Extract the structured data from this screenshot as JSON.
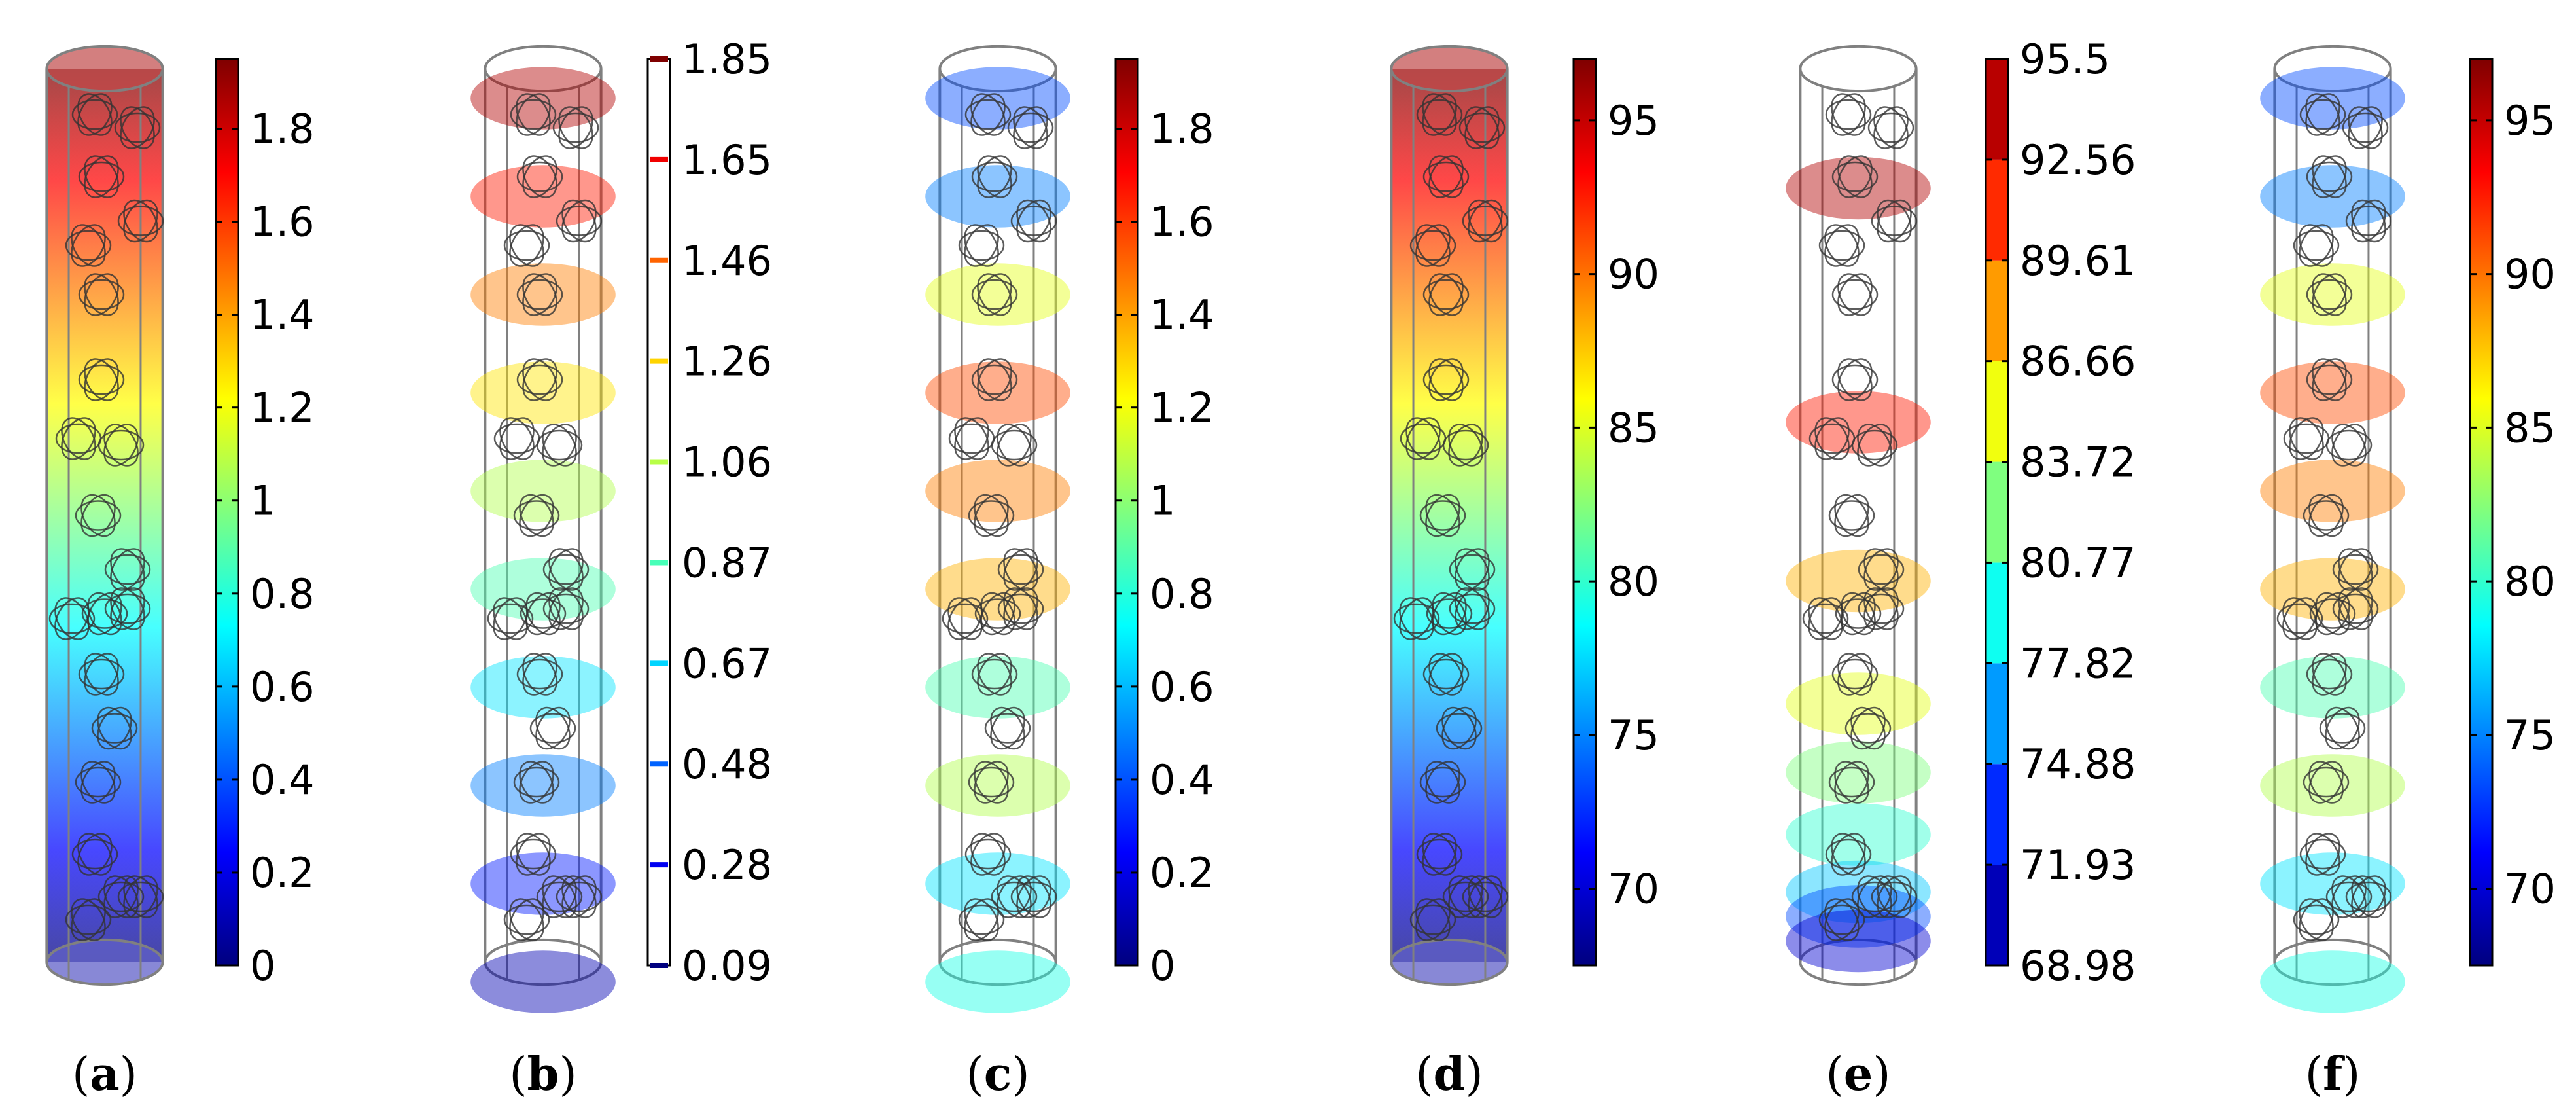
{
  "figure": {
    "panels": [
      {
        "id": "a",
        "label": "(a)",
        "letter": "a",
        "kind": "volume-gradient",
        "colorbar": {
          "kind": "continuous",
          "ticks": [
            "0",
            "0.2",
            "0.4",
            "0.6",
            "0.8",
            "1",
            "1.2",
            "1.4",
            "1.6",
            "1.8"
          ],
          "min": 0,
          "max": 1.95
        }
      },
      {
        "id": "b",
        "label": "(b)",
        "letter": "b",
        "kind": "slices-uniform",
        "colorbar": {
          "kind": "contour",
          "ticks": [
            "0.09",
            "0.28",
            "0.48",
            "0.67",
            "0.87",
            "1.06",
            "1.26",
            "1.46",
            "1.65",
            "1.85"
          ]
        }
      },
      {
        "id": "c",
        "label": "(c)",
        "letter": "c",
        "kind": "slices-pattern",
        "colorbar": {
          "kind": "continuous",
          "ticks": [
            "0",
            "0.2",
            "0.4",
            "0.6",
            "0.8",
            "1",
            "1.2",
            "1.4",
            "1.6",
            "1.8"
          ],
          "min": 0,
          "max": 1.95
        }
      },
      {
        "id": "d",
        "label": "(d)",
        "letter": "d",
        "kind": "volume-gradient",
        "colorbar": {
          "kind": "continuous",
          "ticks": [
            "70",
            "75",
            "80",
            "85",
            "90",
            "95"
          ],
          "min": 67.5,
          "max": 97
        }
      },
      {
        "id": "e",
        "label": "(e)",
        "letter": "e",
        "kind": "slices-sparse",
        "colorbar": {
          "kind": "banded",
          "ticks": [
            "68.98",
            "71.93",
            "74.88",
            "77.82",
            "80.77",
            "83.72",
            "86.66",
            "89.61",
            "92.56",
            "95.5"
          ]
        }
      },
      {
        "id": "f",
        "label": "(f)",
        "letter": "f",
        "kind": "slices-pattern",
        "colorbar": {
          "kind": "continuous",
          "ticks": [
            "70",
            "75",
            "80",
            "85",
            "90",
            "95"
          ],
          "min": 67.5,
          "max": 97
        }
      }
    ]
  },
  "colors": {
    "jet": [
      "#00007f",
      "#0000ff",
      "#007fff",
      "#00ffff",
      "#7fff7f",
      "#ffff00",
      "#ff7f00",
      "#ff0000",
      "#7f0000"
    ],
    "outline": "#808080",
    "ring": "#333333",
    "text": "#000000"
  }
}
